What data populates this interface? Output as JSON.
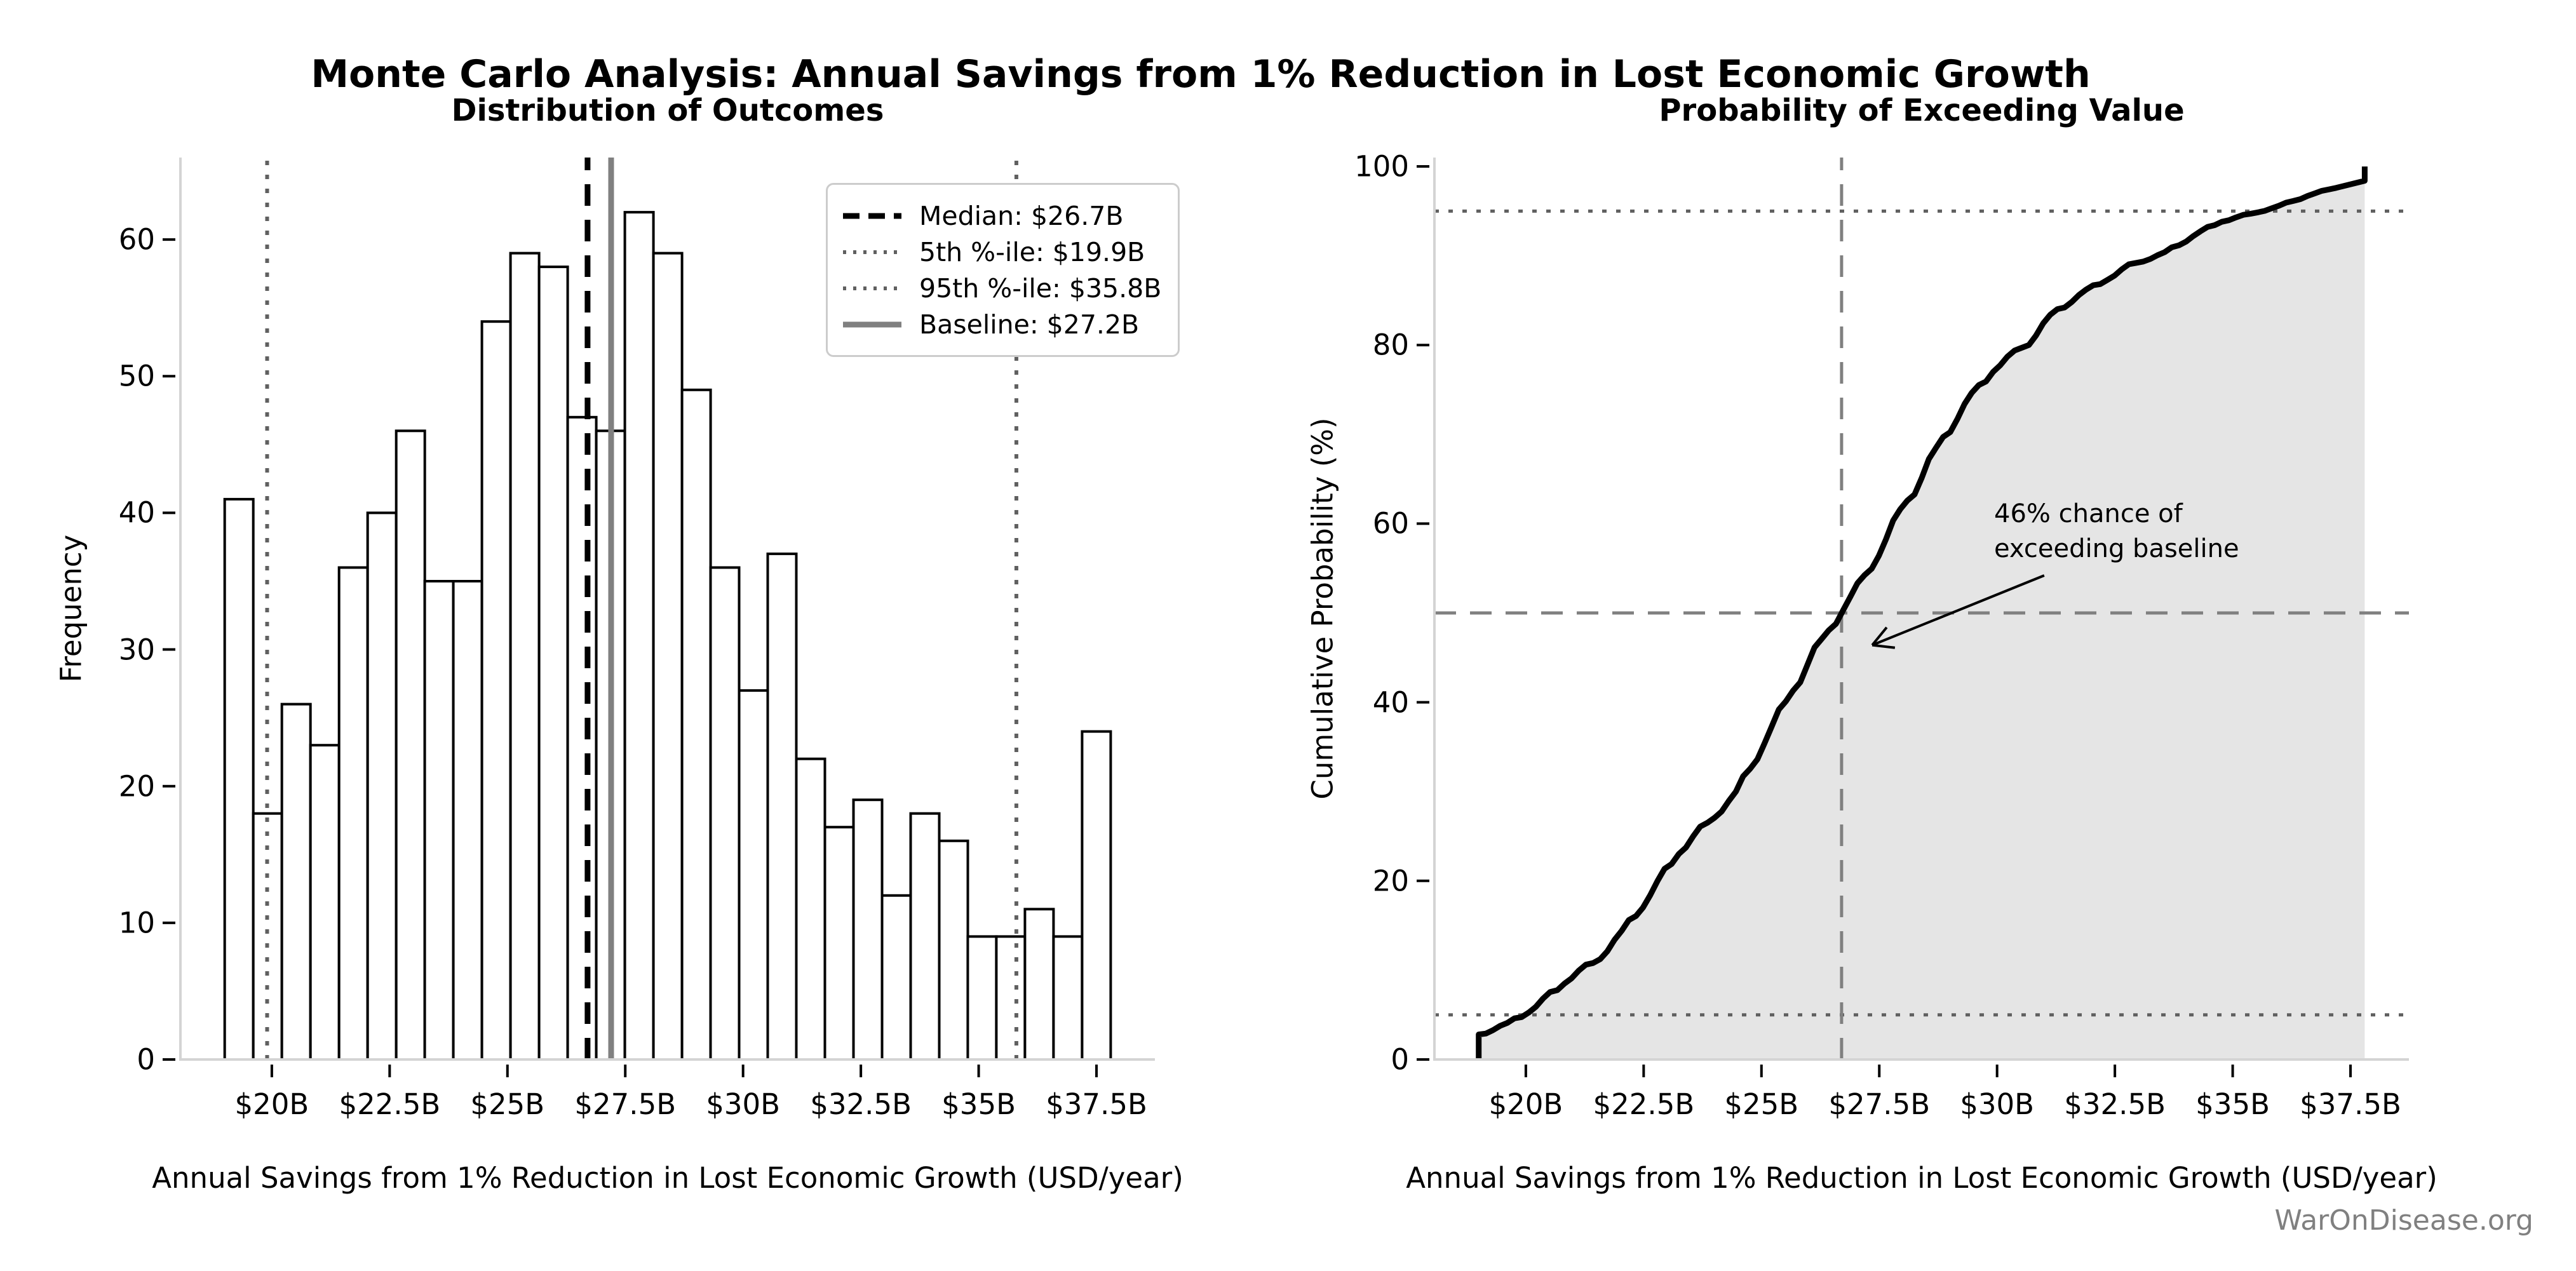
{
  "figure": {
    "title": "Monte Carlo Analysis: Annual Savings from 1% Reduction in Lost Economic Growth",
    "watermark": "WarOnDisease.org",
    "n_samples": 1000
  },
  "colors": {
    "bar_fill": "#ffffff",
    "bar_edge": "#000000",
    "spine": "#d4d4d4",
    "tick": "#000000",
    "curve": "#000000",
    "area_fill": "rgba(0,0,0,0.10)",
    "dotted_guide": "#606060",
    "dashed_guide": "#808080",
    "baseline_gray": "#808080",
    "watermark": "#808080"
  },
  "chart_data": [
    {
      "type": "bar",
      "subtype": "histogram",
      "title": "Distribution of Outcomes",
      "xlabel": "Annual Savings from 1% Reduction in Lost Economic Growth (USD/year)",
      "ylabel": "Frequency",
      "bin_start": 19.0,
      "bin_width": 0.6065,
      "frequencies": [
        41,
        18,
        26,
        23,
        36,
        40,
        46,
        35,
        35,
        54,
        59,
        58,
        47,
        46,
        62,
        59,
        49,
        36,
        27,
        37,
        22,
        17,
        19,
        12,
        18,
        16,
        9,
        9,
        11,
        9,
        24
      ],
      "xlim": [
        18.06,
        38.74
      ],
      "ylim": [
        0,
        66
      ],
      "xticks": [
        20,
        22.5,
        25,
        27.5,
        30,
        32.5,
        35,
        37.5
      ],
      "xtick_labels": [
        "$20B",
        "$22.5B",
        "$25B",
        "$27.5B",
        "$30B",
        "$32.5B",
        "$35B",
        "$37.5B"
      ],
      "yticks": [
        0,
        10,
        20,
        30,
        40,
        50,
        60
      ],
      "grid": false,
      "legend_position": "upper right",
      "vlines": [
        {
          "name": "median",
          "x": 26.7,
          "style": "dashed",
          "color": "#000000",
          "width": 9,
          "label": "Median: $26.7B"
        },
        {
          "name": "percentile-5",
          "x": 19.9,
          "style": "dotted",
          "color": "#606060",
          "width": 6,
          "label": "5th %-ile: $19.9B"
        },
        {
          "name": "percentile-95",
          "x": 35.8,
          "style": "dotted",
          "color": "#606060",
          "width": 6,
          "label": "95th %-ile: $35.8B"
        },
        {
          "name": "baseline",
          "x": 27.2,
          "style": "solid",
          "color": "#808080",
          "width": 9,
          "label": "Baseline: $27.2B"
        }
      ]
    },
    {
      "type": "line",
      "subtype": "empirical-cdf",
      "title": "Probability of Exceeding Value",
      "xlabel": "Annual Savings from 1% Reduction in Lost Economic Growth (USD/year)",
      "ylabel": "Cumulative Probability (%)",
      "bin_start": 19.0,
      "bin_width": 0.6065,
      "start_probability": 2.8,
      "cumulative_pct": [
        4.1,
        5.9,
        8.5,
        10.8,
        14.4,
        18.4,
        23.0,
        26.5,
        30.0,
        35.4,
        41.3,
        47.1,
        51.8,
        56.4,
        62.6,
        68.5,
        73.4,
        77.0,
        79.7,
        83.4,
        85.6,
        87.3,
        89.2,
        90.4,
        92.2,
        93.8,
        94.7,
        95.6,
        96.7,
        97.6,
        100.0
      ],
      "xlim": [
        18.06,
        38.74
      ],
      "ylim": [
        0,
        101
      ],
      "xticks": [
        20,
        22.5,
        25,
        27.5,
        30,
        32.5,
        35,
        37.5
      ],
      "xtick_labels": [
        "$20B",
        "$22.5B",
        "$25B",
        "$27.5B",
        "$30B",
        "$32.5B",
        "$35B",
        "$37.5B"
      ],
      "yticks": [
        0,
        20,
        40,
        60,
        80,
        100
      ],
      "grid": false,
      "hlines": [
        {
          "name": "percentile-95-guide",
          "y": 95,
          "style": "dotted",
          "color": "#606060",
          "width": 5
        },
        {
          "name": "percentile-5-guide",
          "y": 5,
          "style": "dotted",
          "color": "#606060",
          "width": 5
        },
        {
          "name": "fifty-percent-guide",
          "y": 50,
          "style": "dashed",
          "color": "#808080",
          "width": 5
        }
      ],
      "vline": {
        "name": "median-crosshair",
        "x": 26.7,
        "style": "dashed",
        "color": "#808080",
        "width": 5
      },
      "annotation": {
        "line1": "46% chance of",
        "line2": "exceeding baseline",
        "text_x": 29.95,
        "text_y": 63.0,
        "arrow_tail": [
          31.0,
          54.2
        ],
        "arrow_tip": [
          27.35,
          46.4
        ],
        "prob_exceed_baseline_pct": 46
      }
    }
  ]
}
